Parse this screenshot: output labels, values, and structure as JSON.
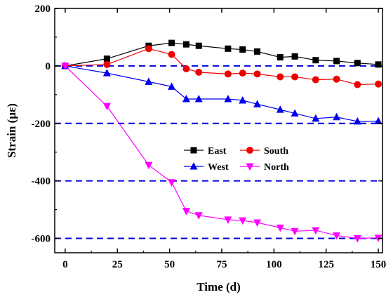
{
  "chart_data": {
    "type": "line",
    "xlabel": "Time (d)",
    "ylabel": "Strain (με)",
    "xlim": [
      -5,
      152
    ],
    "ylim": [
      -650,
      200
    ],
    "xticks": [
      0,
      25,
      50,
      75,
      100,
      125,
      150
    ],
    "yticks": [
      200,
      0,
      -200,
      -400,
      -600
    ],
    "grid": false,
    "reference_lines": {
      "y": [
        0,
        -200,
        -400,
        -600
      ],
      "color": "#0000dd",
      "style": "dashed"
    },
    "legend": {
      "placement": "center",
      "columns": 2
    },
    "series": [
      {
        "name": "East",
        "color": "#000000",
        "marker": "square",
        "x": [
          0,
          20,
          40,
          51,
          58,
          64,
          78,
          85,
          92,
          103,
          110,
          120,
          130,
          140,
          150
        ],
        "y": [
          0,
          25,
          70,
          80,
          75,
          70,
          60,
          57,
          50,
          30,
          33,
          20,
          17,
          10,
          5
        ]
      },
      {
        "name": "South",
        "color": "#ee0000",
        "marker": "circle",
        "x": [
          0,
          20,
          40,
          51,
          58,
          64,
          78,
          85,
          92,
          103,
          110,
          120,
          130,
          140,
          150
        ],
        "y": [
          0,
          5,
          60,
          40,
          -10,
          -22,
          -28,
          -25,
          -28,
          -38,
          -38,
          -48,
          -46,
          -65,
          -63
        ]
      },
      {
        "name": "West",
        "color": "#0000ee",
        "marker": "triangle-up",
        "x": [
          0,
          20,
          40,
          51,
          58,
          64,
          78,
          85,
          92,
          103,
          110,
          120,
          130,
          140,
          150
        ],
        "y": [
          0,
          -25,
          -55,
          -72,
          -115,
          -115,
          -115,
          -120,
          -133,
          -152,
          -165,
          -183,
          -178,
          -193,
          -192
        ]
      },
      {
        "name": "North",
        "color": "#ff00ff",
        "marker": "triangle-down",
        "x": [
          0,
          20,
          40,
          51,
          58,
          64,
          78,
          85,
          92,
          103,
          110,
          120,
          130,
          140,
          150
        ],
        "y": [
          0,
          -140,
          -345,
          -405,
          -505,
          -520,
          -535,
          -538,
          -545,
          -563,
          -575,
          -572,
          -590,
          -600,
          -598
        ]
      }
    ]
  }
}
